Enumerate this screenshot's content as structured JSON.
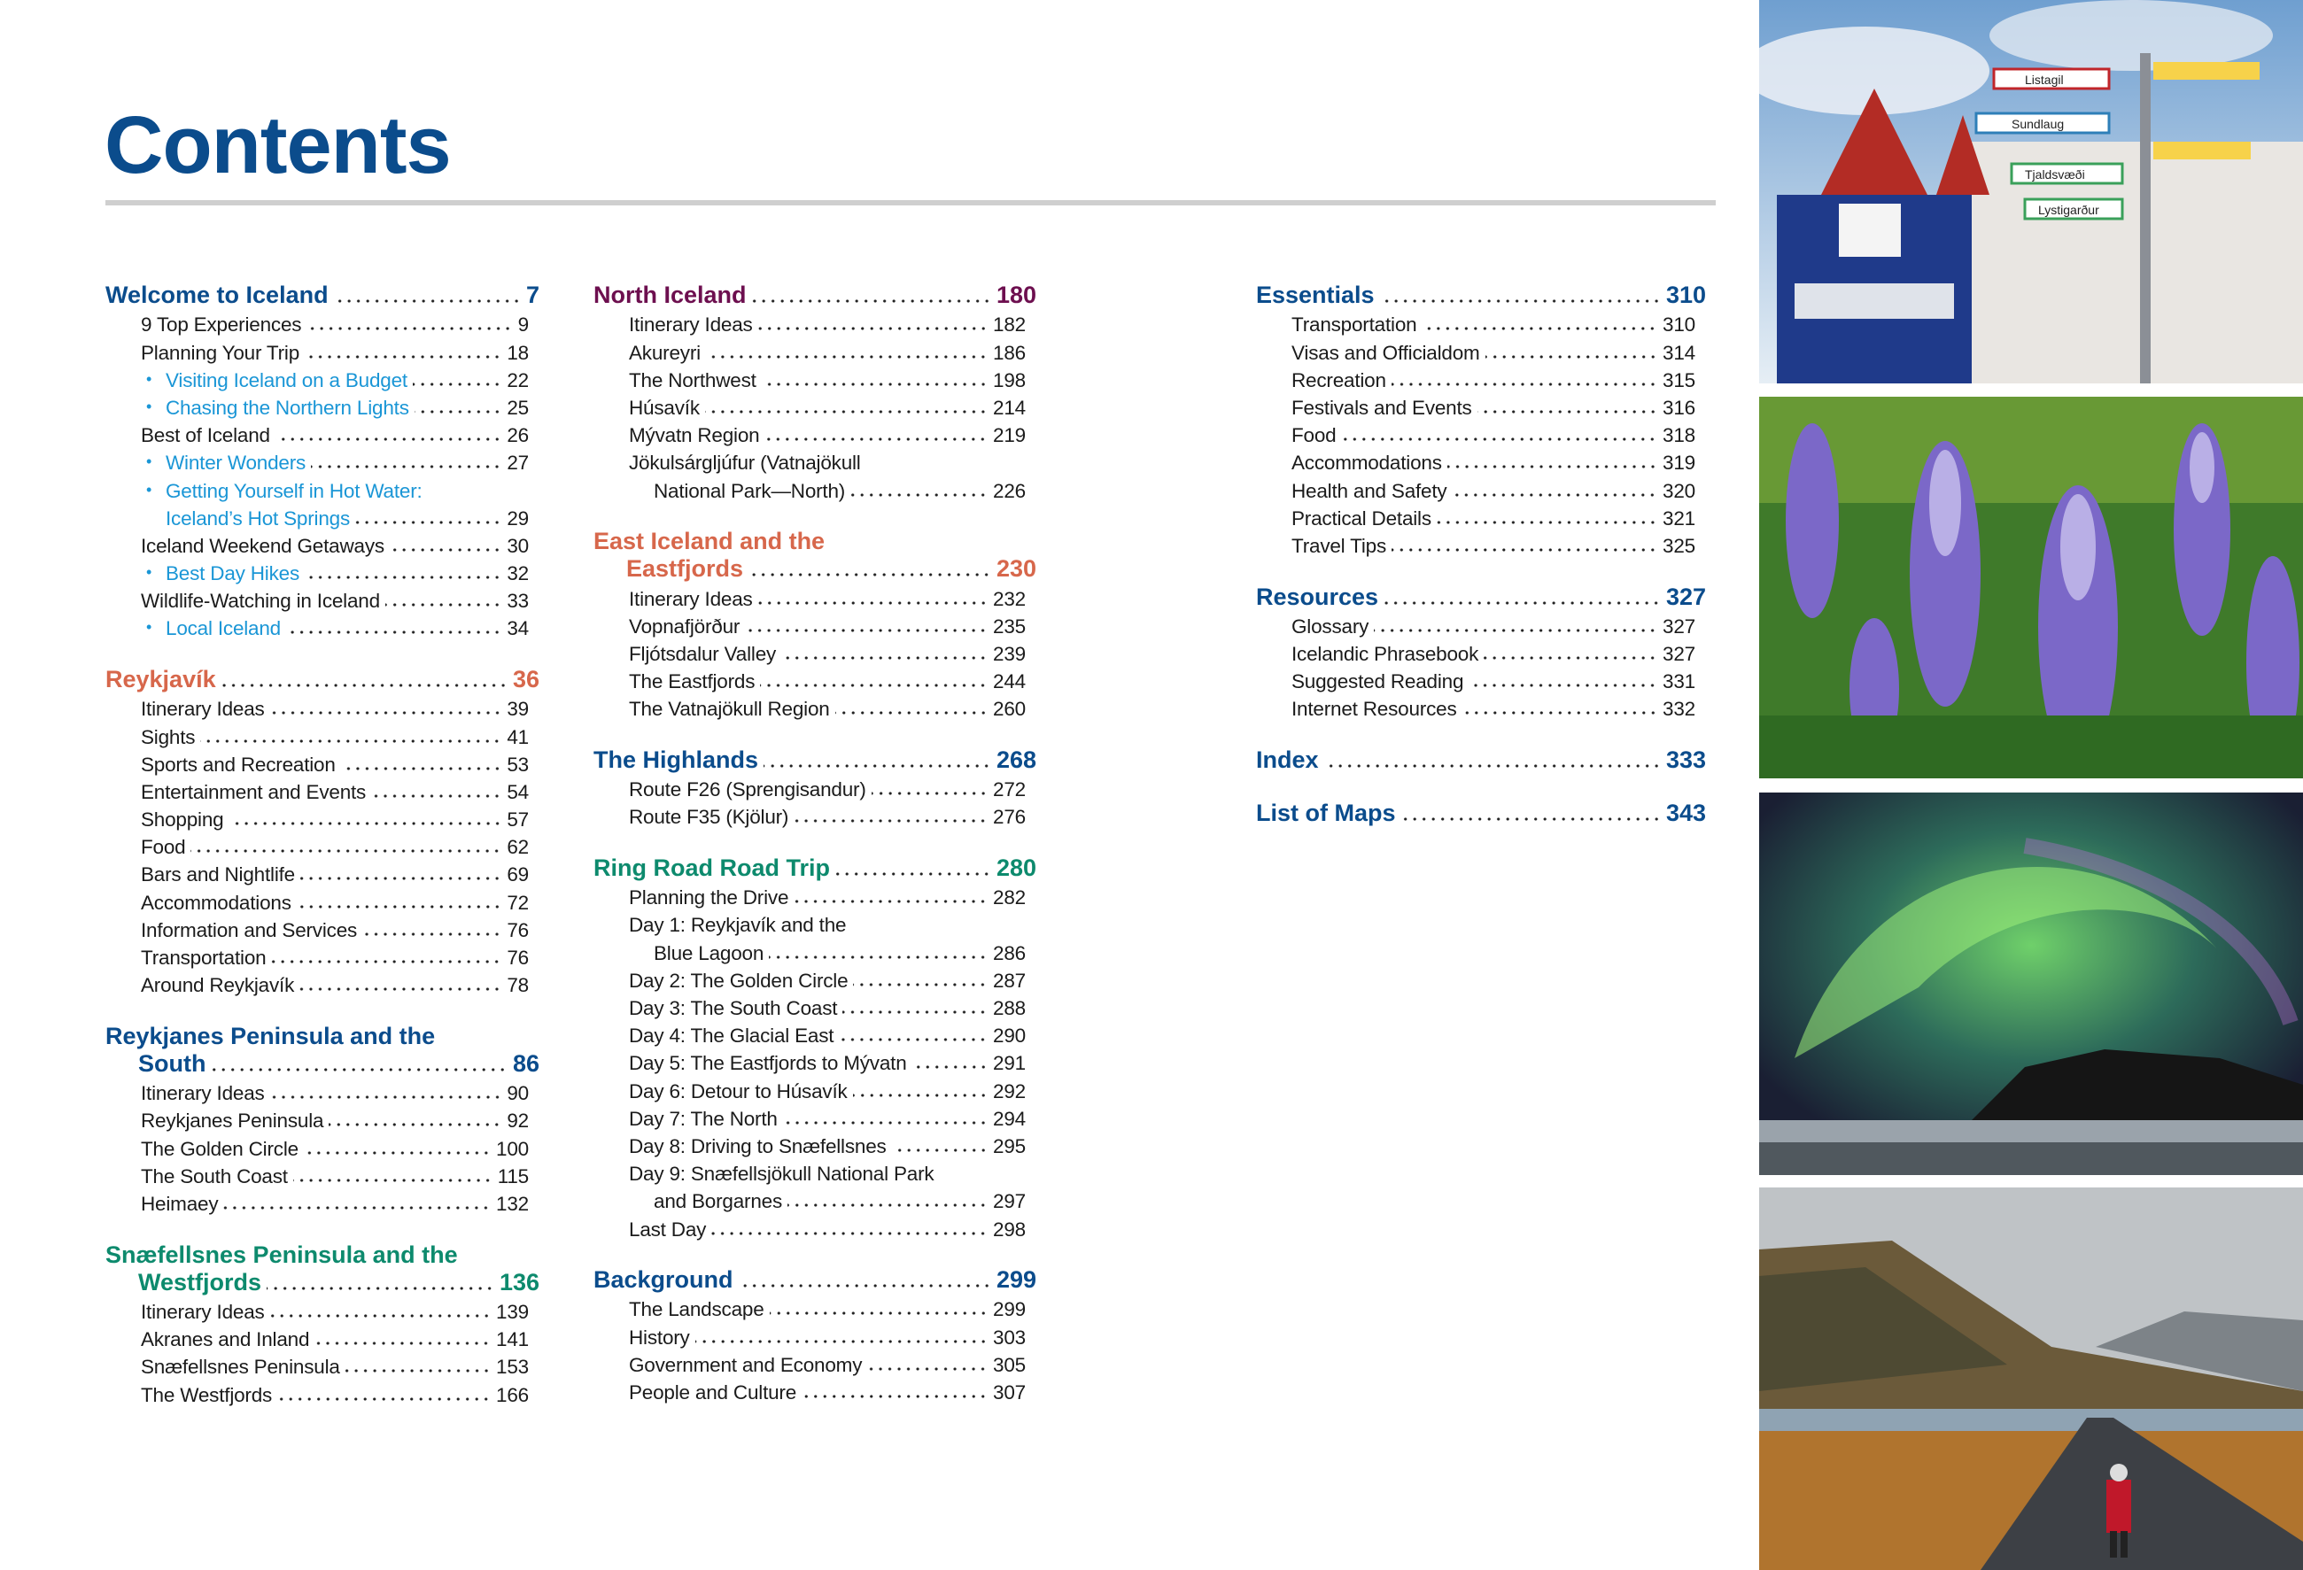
{
  "page_title": "Contents",
  "colors": {
    "blue": "#0b4c8c",
    "orange": "#d7674b",
    "purple": "#6d0f4f",
    "green": "#0d8a6d",
    "highlight": "#1a96d6"
  },
  "columns": [
    {
      "sections": [
        {
          "title_lines": [
            "Welcome to Iceland"
          ],
          "page": "7",
          "color": "blue",
          "items": [
            {
              "lines": [
                "9 Top Experiences"
              ],
              "page": "9"
            },
            {
              "lines": [
                "Planning Your Trip"
              ],
              "page": "18"
            },
            {
              "lines": [
                "Visiting Iceland on a Budget"
              ],
              "page": "22",
              "sub": true
            },
            {
              "lines": [
                "Chasing the Northern Lights"
              ],
              "page": "25",
              "sub": true
            },
            {
              "lines": [
                "Best of Iceland"
              ],
              "page": "26"
            },
            {
              "lines": [
                "Winter Wonders"
              ],
              "page": "27",
              "sub": true
            },
            {
              "lines": [
                "Getting Yourself in Hot Water:",
                "Iceland’s Hot Springs"
              ],
              "page": "29",
              "sub": true
            },
            {
              "lines": [
                "Iceland Weekend Getaways"
              ],
              "page": "30"
            },
            {
              "lines": [
                "Best Day Hikes"
              ],
              "page": "32",
              "sub": true
            },
            {
              "lines": [
                "Wildlife-Watching in Iceland"
              ],
              "page": "33"
            },
            {
              "lines": [
                "Local Iceland"
              ],
              "page": "34",
              "sub": true
            }
          ]
        },
        {
          "title_lines": [
            "Reykjavík"
          ],
          "page": "36",
          "color": "orange",
          "items": [
            {
              "lines": [
                "Itinerary Ideas"
              ],
              "page": "39"
            },
            {
              "lines": [
                "Sights"
              ],
              "page": "41"
            },
            {
              "lines": [
                "Sports and Recreation"
              ],
              "page": "53"
            },
            {
              "lines": [
                "Entertainment and Events"
              ],
              "page": "54"
            },
            {
              "lines": [
                "Shopping"
              ],
              "page": "57"
            },
            {
              "lines": [
                "Food"
              ],
              "page": "62"
            },
            {
              "lines": [
                "Bars and Nightlife"
              ],
              "page": "69"
            },
            {
              "lines": [
                "Accommodations"
              ],
              "page": "72"
            },
            {
              "lines": [
                "Information and Services"
              ],
              "page": "76"
            },
            {
              "lines": [
                "Transportation"
              ],
              "page": "76"
            },
            {
              "lines": [
                "Around Reykjavík"
              ],
              "page": "78"
            }
          ]
        },
        {
          "title_lines": [
            "Reykjanes Peninsula and the",
            "South"
          ],
          "page": "86",
          "color": "blue",
          "items": [
            {
              "lines": [
                "Itinerary Ideas"
              ],
              "page": "90"
            },
            {
              "lines": [
                "Reykjanes Peninsula"
              ],
              "page": "92"
            },
            {
              "lines": [
                "The Golden Circle"
              ],
              "page": "100"
            },
            {
              "lines": [
                "The South Coast"
              ],
              "page": "115"
            },
            {
              "lines": [
                "Heimaey"
              ],
              "page": "132"
            }
          ]
        },
        {
          "title_lines": [
            "Snæfellsnes Peninsula and the",
            "Westfjords"
          ],
          "page": "136",
          "color": "green",
          "items": [
            {
              "lines": [
                "Itinerary Ideas"
              ],
              "page": "139"
            },
            {
              "lines": [
                "Akranes and Inland"
              ],
              "page": "141"
            },
            {
              "lines": [
                "Snæfellsnes Peninsula"
              ],
              "page": "153"
            },
            {
              "lines": [
                "The Westfjords"
              ],
              "page": "166"
            }
          ]
        }
      ]
    },
    {
      "sections": [
        {
          "title_lines": [
            "North Iceland"
          ],
          "page": "180",
          "color": "purple",
          "items": [
            {
              "lines": [
                "Itinerary Ideas"
              ],
              "page": "182"
            },
            {
              "lines": [
                "Akureyri"
              ],
              "page": "186"
            },
            {
              "lines": [
                "The Northwest"
              ],
              "page": "198"
            },
            {
              "lines": [
                "Húsavík"
              ],
              "page": "214"
            },
            {
              "lines": [
                "Mývatn Region"
              ],
              "page": "219"
            },
            {
              "lines": [
                "Jökulsárgljúfur (Vatnajökull",
                "National Park—North)"
              ],
              "page": "226"
            }
          ]
        },
        {
          "title_lines": [
            "East Iceland and the",
            "Eastfjords"
          ],
          "page": "230",
          "color": "orange",
          "items": [
            {
              "lines": [
                "Itinerary Ideas"
              ],
              "page": "232"
            },
            {
              "lines": [
                "Vopnafjörður"
              ],
              "page": "235"
            },
            {
              "lines": [
                "Fljótsdalur Valley"
              ],
              "page": "239"
            },
            {
              "lines": [
                "The Eastfjords"
              ],
              "page": "244"
            },
            {
              "lines": [
                "The Vatnajökull Region"
              ],
              "page": "260"
            }
          ]
        },
        {
          "title_lines": [
            "The Highlands"
          ],
          "page": "268",
          "color": "blue",
          "items": [
            {
              "lines": [
                "Route F26 (Sprengisandur)"
              ],
              "page": "272"
            },
            {
              "lines": [
                "Route F35 (Kjölur)"
              ],
              "page": "276"
            }
          ]
        },
        {
          "title_lines": [
            "Ring Road Road Trip"
          ],
          "page": "280",
          "color": "green",
          "items": [
            {
              "lines": [
                "Planning the Drive"
              ],
              "page": "282"
            },
            {
              "lines": [
                "Day 1: Reykjavík and the",
                "Blue Lagoon"
              ],
              "page": "286"
            },
            {
              "lines": [
                "Day 2: The Golden Circle"
              ],
              "page": "287"
            },
            {
              "lines": [
                "Day 3: The South Coast"
              ],
              "page": "288"
            },
            {
              "lines": [
                "Day 4: The Glacial East"
              ],
              "page": "290"
            },
            {
              "lines": [
                "Day 5: The Eastfjords to Mývatn"
              ],
              "page": "291"
            },
            {
              "lines": [
                "Day 6: Detour to Húsavík"
              ],
              "page": "292"
            },
            {
              "lines": [
                "Day 7: The North"
              ],
              "page": "294"
            },
            {
              "lines": [
                "Day 8: Driving to Snæfellsnes"
              ],
              "page": "295"
            },
            {
              "lines": [
                "Day 9: Snæfellsjökull National Park",
                "and Borgarnes"
              ],
              "page": "297"
            },
            {
              "lines": [
                "Last Day"
              ],
              "page": "298"
            }
          ]
        },
        {
          "title_lines": [
            "Background"
          ],
          "page": "299",
          "color": "blue",
          "items": [
            {
              "lines": [
                "The Landscape"
              ],
              "page": "299"
            },
            {
              "lines": [
                "History"
              ],
              "page": "303"
            },
            {
              "lines": [
                "Government and Economy"
              ],
              "page": "305"
            },
            {
              "lines": [
                "People and Culture"
              ],
              "page": "307"
            }
          ]
        }
      ]
    },
    {
      "sections": [
        {
          "title_lines": [
            "Essentials"
          ],
          "page": "310",
          "color": "blue",
          "items": [
            {
              "lines": [
                "Transportation"
              ],
              "page": "310"
            },
            {
              "lines": [
                "Visas and Officialdom"
              ],
              "page": "314"
            },
            {
              "lines": [
                "Recreation"
              ],
              "page": "315"
            },
            {
              "lines": [
                "Festivals and Events"
              ],
              "page": "316"
            },
            {
              "lines": [
                "Food"
              ],
              "page": "318"
            },
            {
              "lines": [
                "Accommodations"
              ],
              "page": "319"
            },
            {
              "lines": [
                "Health and Safety"
              ],
              "page": "320"
            },
            {
              "lines": [
                "Practical Details"
              ],
              "page": "321"
            },
            {
              "lines": [
                "Travel Tips"
              ],
              "page": "325"
            }
          ]
        },
        {
          "title_lines": [
            "Resources"
          ],
          "page": "327",
          "color": "blue",
          "items": [
            {
              "lines": [
                "Glossary"
              ],
              "page": "327"
            },
            {
              "lines": [
                "Icelandic Phrasebook"
              ],
              "page": "327"
            },
            {
              "lines": [
                "Suggested Reading"
              ],
              "page": "331"
            },
            {
              "lines": [
                "Internet Resources"
              ],
              "page": "332"
            }
          ]
        },
        {
          "title_lines": [
            "Index"
          ],
          "page": "333",
          "color": "blue",
          "items": []
        },
        {
          "title_lines": [
            "List of Maps"
          ],
          "page": "343",
          "color": "blue",
          "items": []
        }
      ]
    }
  ],
  "photos": [
    {
      "subject": "town-signpost-photo",
      "sign_texts": [
        "Listagil",
        "Sundlaug",
        "Tjaldsvæði",
        "Lystigarður"
      ]
    },
    {
      "subject": "lupine-flowers-photo"
    },
    {
      "subject": "northern-lights-photo"
    },
    {
      "subject": "road-walker-photo"
    }
  ]
}
